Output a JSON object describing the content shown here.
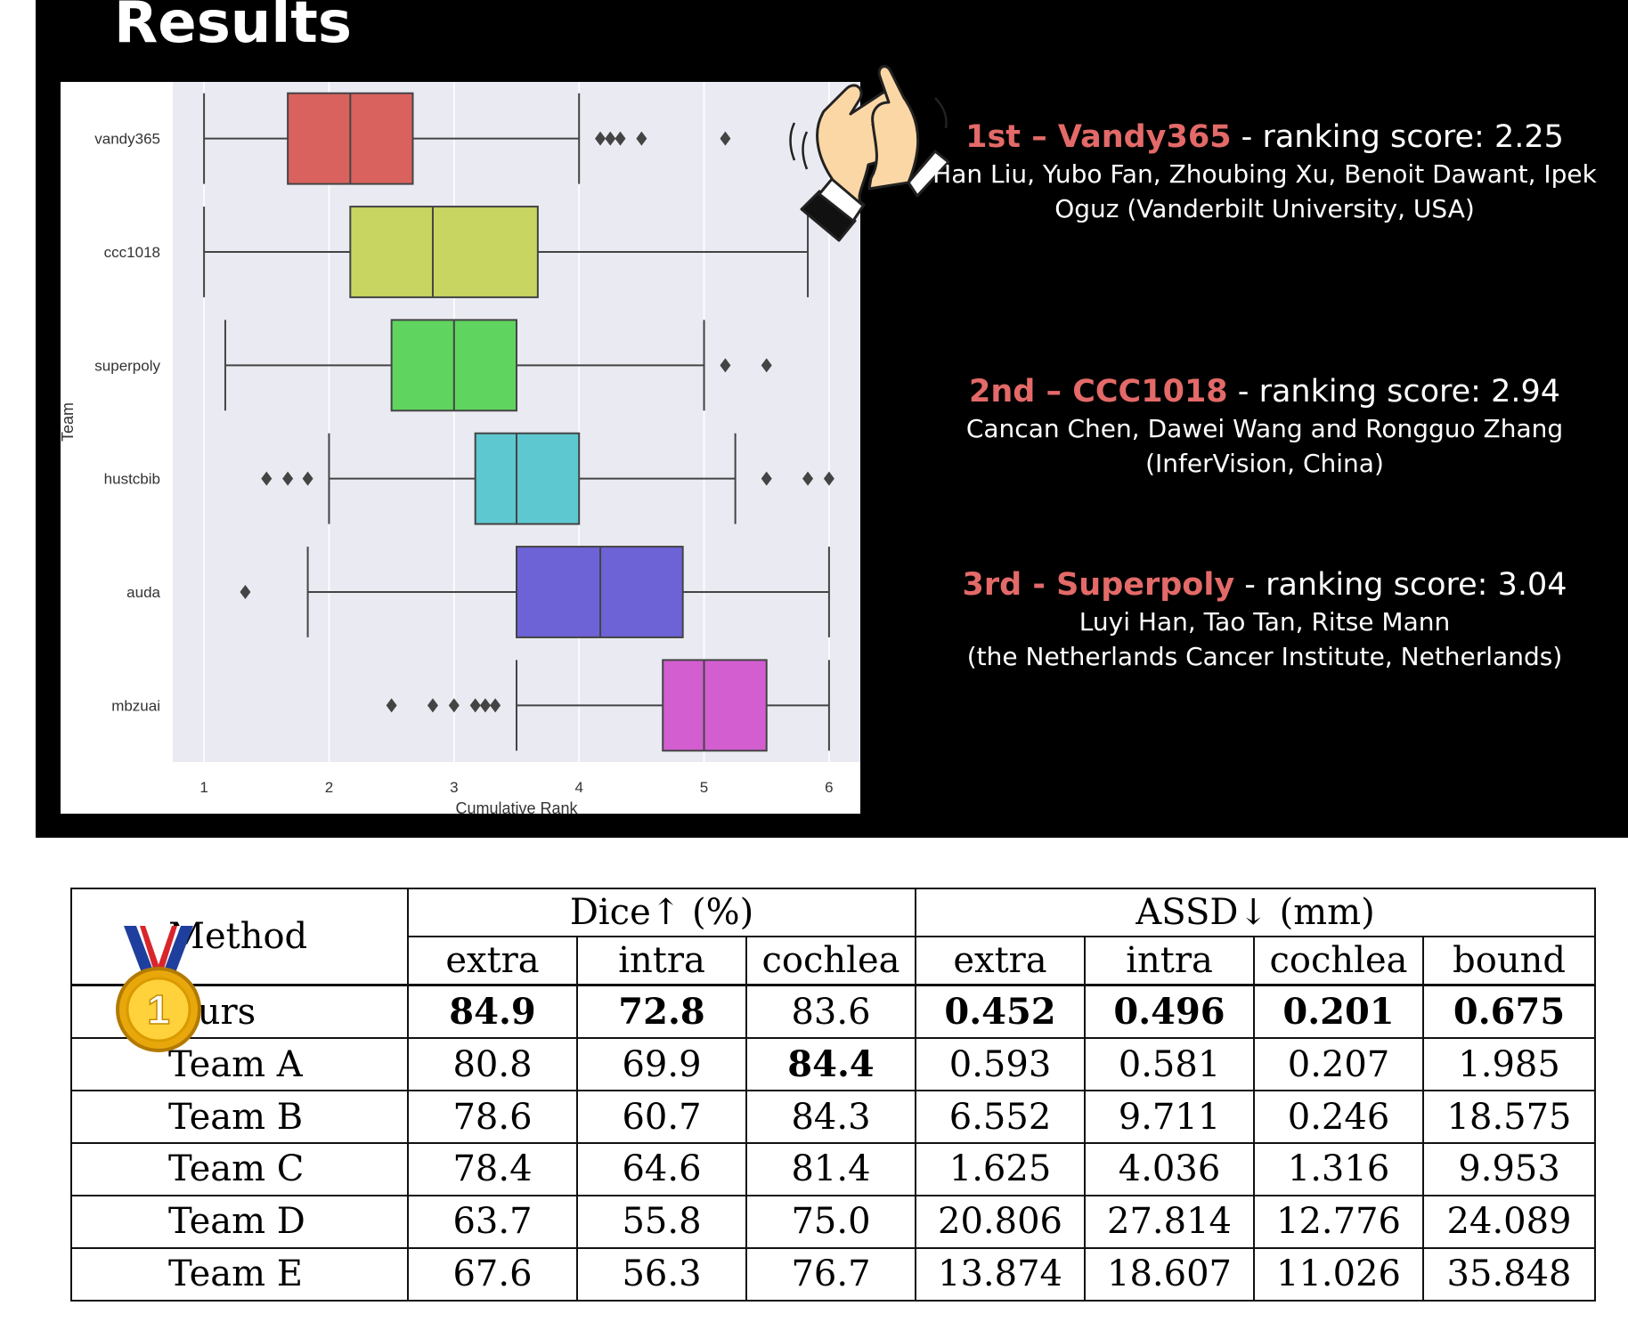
{
  "slide": {
    "title": "Results",
    "awards": [
      {
        "rank": "1st",
        "team": "Vandy365",
        "score_label": "ranking score: 2.25",
        "names_line1": "Han Liu, Yubo Fan, Zhoubing Xu, Benoit Dawant, Ipek",
        "names_line2": "Oguz (Vanderbilt University, USA)"
      },
      {
        "rank": "2nd",
        "team": "CCC1018",
        "score_label": "ranking score: 2.94",
        "names_line1": "Cancan Chen, Dawei Wang and Rongguo Zhang",
        "names_line2": "(InferVision, China)"
      },
      {
        "rank": "3rd",
        "team": "Superpoly",
        "score_label": "ranking score: 3.04",
        "names_line1": "Luyi Han, Tao Tan, Ritse Mann",
        "names_line2": "(the Netherlands Cancer Institute, Netherlands)"
      }
    ]
  },
  "chart_data": {
    "type": "boxplot",
    "xlabel": "Cumulative Rank",
    "ylabel": "Team",
    "xlim": [
      0.75,
      6.25
    ],
    "xticks": [
      1,
      2,
      3,
      4,
      5,
      6
    ],
    "grid": true,
    "orientation": "horizontal",
    "background": "#eaeaf2",
    "categories": [
      "vandy365",
      "ccc1018",
      "superpoly",
      "hustcbib",
      "auda",
      "mbzuai"
    ],
    "boxes": [
      {
        "team": "vandy365",
        "whisker_low": 1.0,
        "q1": 1.67,
        "median": 2.17,
        "q3": 2.67,
        "whisker_high": 4.0,
        "outliers": [
          4.17,
          4.25,
          4.33,
          4.5,
          5.17
        ],
        "color": "#d9625e"
      },
      {
        "team": "ccc1018",
        "whisker_low": 1.0,
        "q1": 2.17,
        "median": 2.83,
        "q3": 3.67,
        "whisker_high": 5.83,
        "outliers": [],
        "color": "#c8d560"
      },
      {
        "team": "superpoly",
        "whisker_low": 1.17,
        "q1": 2.5,
        "median": 3.0,
        "q3": 3.5,
        "whisker_high": 5.0,
        "outliers": [
          5.17,
          5.5
        ],
        "color": "#5fd55f"
      },
      {
        "team": "hustcbib",
        "whisker_low": 2.0,
        "q1": 3.17,
        "median": 3.5,
        "q3": 4.0,
        "whisker_high": 5.25,
        "outliers": [
          1.5,
          1.67,
          1.83,
          5.5,
          5.83,
          6.0
        ],
        "color": "#5ec8d0"
      },
      {
        "team": "auda",
        "whisker_low": 1.83,
        "q1": 3.5,
        "median": 4.17,
        "q3": 4.83,
        "whisker_high": 6.0,
        "outliers": [
          1.33
        ],
        "color": "#6d62d6"
      },
      {
        "team": "mbzuai",
        "whisker_low": 3.5,
        "q1": 4.67,
        "median": 5.0,
        "q3": 5.5,
        "whisker_high": 6.0,
        "outliers": [
          2.5,
          2.83,
          3.0,
          3.17,
          3.25,
          3.33
        ],
        "color": "#d25ed0"
      }
    ]
  },
  "table": {
    "method_header": "Method",
    "groups": [
      {
        "label": "Dice↑ (%)",
        "span": 3
      },
      {
        "label": "ASSD↓ (mm)",
        "span": 4
      }
    ],
    "subheaders": [
      "extra",
      "intra",
      "cochlea",
      "extra",
      "intra",
      "cochlea",
      "bound"
    ],
    "rows": [
      {
        "method": "Ours",
        "values": [
          "84.9",
          "72.8",
          "83.6",
          "0.452",
          "0.496",
          "0.201",
          "0.675"
        ],
        "bold": [
          true,
          true,
          false,
          true,
          true,
          true,
          true
        ]
      },
      {
        "method": "Team A",
        "values": [
          "80.8",
          "69.9",
          "84.4",
          "0.593",
          "0.581",
          "0.207",
          "1.985"
        ],
        "bold": [
          false,
          false,
          true,
          false,
          false,
          false,
          false
        ]
      },
      {
        "method": "Team B",
        "values": [
          "78.6",
          "60.7",
          "84.3",
          "6.552",
          "9.711",
          "0.246",
          "18.575"
        ],
        "bold": [
          false,
          false,
          false,
          false,
          false,
          false,
          false
        ]
      },
      {
        "method": "Team C",
        "values": [
          "78.4",
          "64.6",
          "81.4",
          "1.625",
          "4.036",
          "1.316",
          "9.953"
        ],
        "bold": [
          false,
          false,
          false,
          false,
          false,
          false,
          false
        ]
      },
      {
        "method": "Team D",
        "values": [
          "63.7",
          "55.8",
          "75.0",
          "20.806",
          "27.814",
          "12.776",
          "24.089"
        ],
        "bold": [
          false,
          false,
          false,
          false,
          false,
          false,
          false
        ]
      },
      {
        "method": "Team E",
        "values": [
          "67.6",
          "56.3",
          "76.7",
          "13.874",
          "18.607",
          "11.026",
          "35.848"
        ],
        "bold": [
          false,
          false,
          false,
          false,
          false,
          false,
          false
        ]
      }
    ],
    "medal": {
      "icon": "gold-medal-icon",
      "label": "1"
    }
  }
}
